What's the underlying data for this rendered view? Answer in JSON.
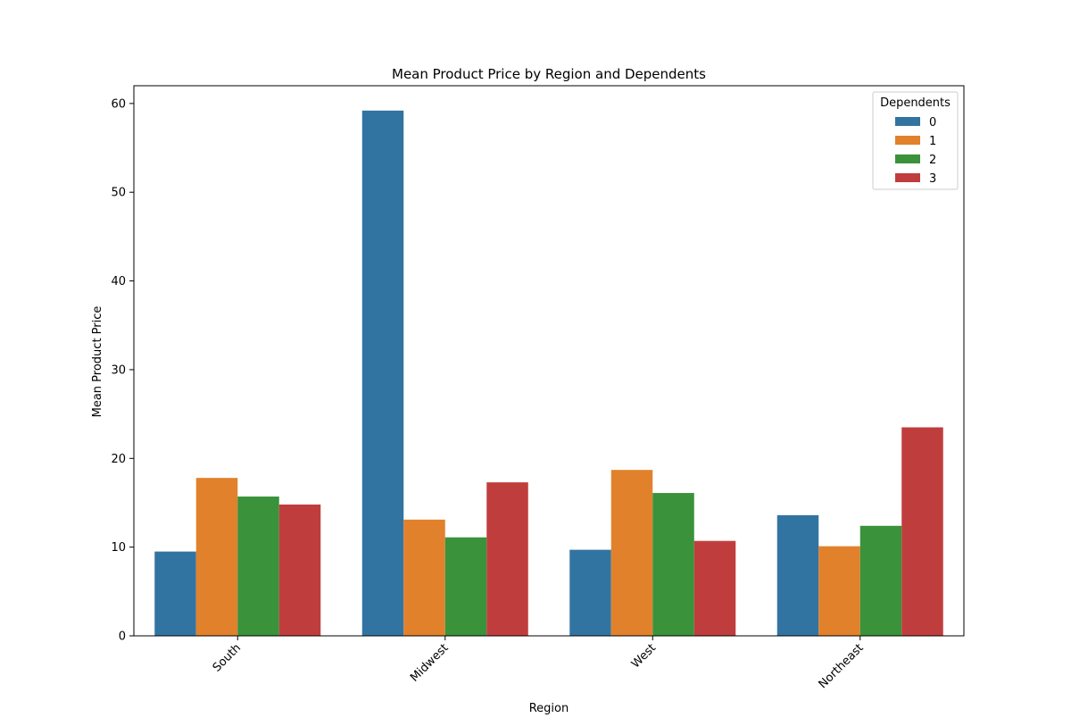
{
  "chart_data": {
    "type": "bar",
    "title": "Mean Product Price by Region and Dependents",
    "xlabel": "Region",
    "ylabel": "Mean Product Price",
    "categories": [
      "South",
      "Midwest",
      "West",
      "Northeast"
    ],
    "ylim": [
      0,
      62
    ],
    "yticks": [
      0,
      10,
      20,
      30,
      40,
      50,
      60
    ],
    "grid": false,
    "legend": {
      "title": "Dependents",
      "placement": "top-right"
    },
    "colors": [
      "#3274a1",
      "#e1812c",
      "#3a923a",
      "#c03d3e"
    ],
    "series": [
      {
        "name": "0",
        "values": [
          9.5,
          59.2,
          9.7,
          13.6
        ]
      },
      {
        "name": "1",
        "values": [
          17.8,
          13.1,
          18.7,
          10.1
        ]
      },
      {
        "name": "2",
        "values": [
          15.7,
          11.1,
          16.1,
          12.4
        ]
      },
      {
        "name": "3",
        "values": [
          14.8,
          17.3,
          10.7,
          23.5
        ]
      }
    ]
  }
}
